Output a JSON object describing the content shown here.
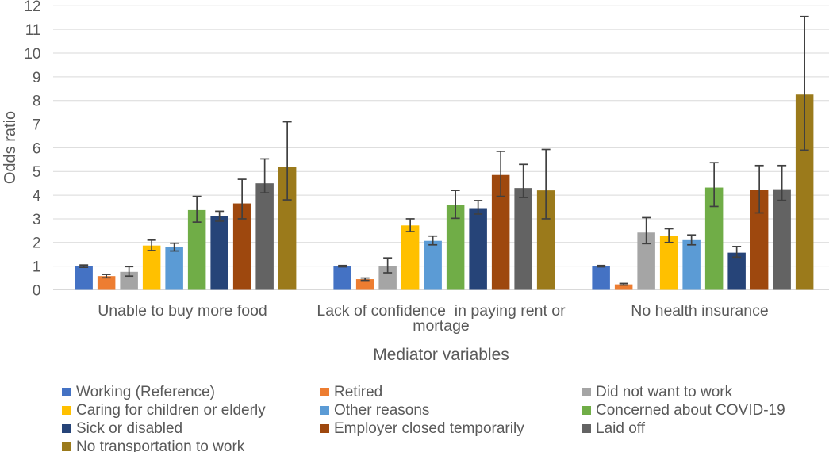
{
  "chart_data": {
    "type": "bar",
    "title": "",
    "xlabel": "Mediator variables",
    "ylabel": "Odds ratio",
    "ylim": [
      0,
      12
    ],
    "ytick_step": 1,
    "grid": true,
    "legend_position": "bottom",
    "categories": [
      "Unable to buy more food",
      "Lack of confidence  in paying rent or mortage",
      "No health insurance"
    ],
    "category_label_lines": [
      [
        "Unable to buy more food"
      ],
      [
        "Lack of confidence  in paying rent or",
        "mortage"
      ],
      [
        "No health insurance"
      ]
    ],
    "series": [
      {
        "name": "Working (Reference)",
        "color": "#4472C4",
        "values": [
          1.0,
          1.0,
          1.0
        ],
        "err_low": [
          0.95,
          0.97,
          0.97
        ],
        "err_high": [
          1.05,
          1.03,
          1.03
        ]
      },
      {
        "name": "Retired",
        "color": "#ED7D31",
        "values": [
          0.58,
          0.45,
          0.23
        ],
        "err_low": [
          0.51,
          0.4,
          0.2
        ],
        "err_high": [
          0.65,
          0.5,
          0.27
        ]
      },
      {
        "name": "Did not want to work",
        "color": "#A5A5A5",
        "values": [
          0.76,
          1.0,
          2.42
        ],
        "err_low": [
          0.58,
          0.72,
          1.95
        ],
        "err_high": [
          0.98,
          1.35,
          3.05
        ]
      },
      {
        "name": "Caring for children or elderly",
        "color": "#FFC000",
        "values": [
          1.87,
          2.72,
          2.27
        ],
        "err_low": [
          1.66,
          2.46,
          2.0
        ],
        "err_high": [
          2.1,
          3.0,
          2.58
        ]
      },
      {
        "name": "Other reasons",
        "color": "#5B9BD5",
        "values": [
          1.8,
          2.07,
          2.1
        ],
        "err_low": [
          1.64,
          1.9,
          1.9
        ],
        "err_high": [
          1.97,
          2.27,
          2.32
        ]
      },
      {
        "name": "Concerned about COVID-19",
        "color": "#70AD47",
        "values": [
          3.37,
          3.57,
          4.32
        ],
        "err_low": [
          2.86,
          3.02,
          3.52
        ],
        "err_high": [
          3.95,
          4.2,
          5.37
        ]
      },
      {
        "name": "Sick or disabled",
        "color": "#264478",
        "values": [
          3.1,
          3.45,
          1.57
        ],
        "err_low": [
          2.9,
          3.2,
          1.38
        ],
        "err_high": [
          3.32,
          3.77,
          1.83
        ]
      },
      {
        "name": "Employer closed temporarily",
        "color": "#9E480E",
        "values": [
          3.65,
          4.85,
          4.22
        ],
        "err_low": [
          3.0,
          3.95,
          3.25
        ],
        "err_high": [
          4.67,
          5.85,
          5.25
        ]
      },
      {
        "name": "Laid off",
        "color": "#636363",
        "values": [
          4.5,
          4.3,
          4.25
        ],
        "err_low": [
          4.1,
          3.9,
          3.78
        ],
        "err_high": [
          5.53,
          5.3,
          5.25
        ]
      },
      {
        "name": "No transportation to work",
        "color": "#9B7A1B",
        "values": [
          5.2,
          4.2,
          8.25
        ],
        "err_low": [
          3.8,
          3.0,
          5.9
        ],
        "err_high": [
          7.1,
          5.93,
          11.55
        ]
      }
    ],
    "style": {
      "gridline_color": "#D9D9D9",
      "axis_line_color": "#D9D9D9",
      "text_color": "#595959",
      "error_bar_color": "#404040"
    }
  }
}
